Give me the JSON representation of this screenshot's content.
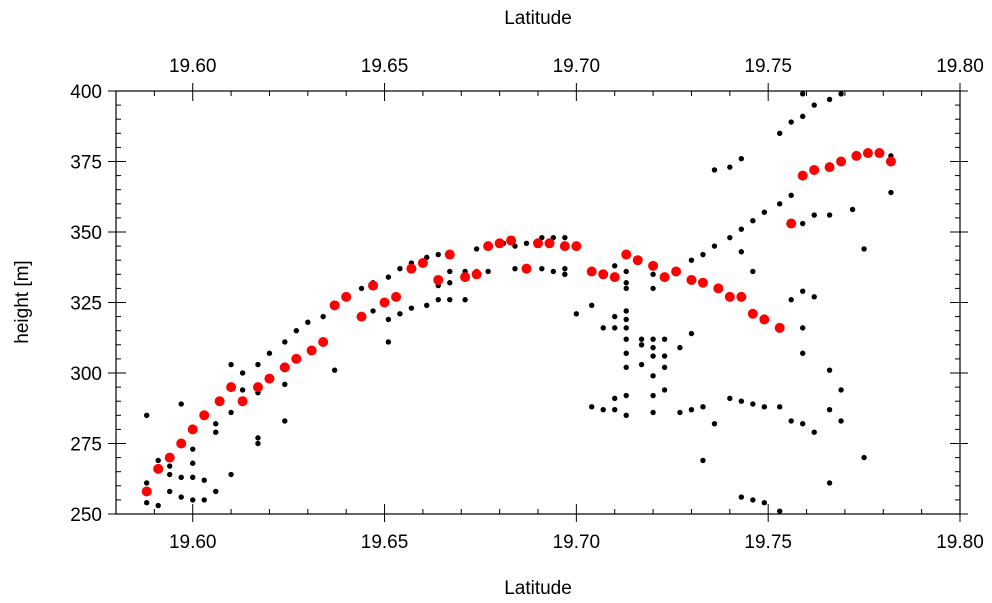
{
  "chart_data": {
    "type": "scatter",
    "title": "",
    "xlabel_top": "Latitude",
    "xlabel": "Latitude",
    "ylabel": "height [m]",
    "xlim": [
      19.58,
      19.8
    ],
    "ylim": [
      250,
      400
    ],
    "x_ticks": [
      19.6,
      19.65,
      19.7,
      19.75,
      19.8
    ],
    "x_tick_labels": [
      "19.60",
      "19.65",
      "19.70",
      "19.75",
      "19.80"
    ],
    "y_ticks": [
      250,
      275,
      300,
      325,
      350,
      375,
      400
    ],
    "y_tick_labels": [
      "250",
      "275",
      "300",
      "325",
      "350",
      "375",
      "400"
    ],
    "grid": false,
    "legend": "none",
    "series": [
      {
        "color": "#000000",
        "marker": "small-dot",
        "points": [
          [
            19.588,
            285
          ],
          [
            19.588,
            261
          ],
          [
            19.588,
            254
          ],
          [
            19.591,
            269
          ],
          [
            19.591,
            253
          ],
          [
            19.594,
            267
          ],
          [
            19.594,
            264
          ],
          [
            19.594,
            258
          ],
          [
            19.597,
            289
          ],
          [
            19.597,
            263
          ],
          [
            19.597,
            256
          ],
          [
            19.6,
            273
          ],
          [
            19.6,
            268
          ],
          [
            19.6,
            263
          ],
          [
            19.6,
            255
          ],
          [
            19.603,
            255
          ],
          [
            19.603,
            262
          ],
          [
            19.606,
            282
          ],
          [
            19.606,
            279
          ],
          [
            19.606,
            258
          ],
          [
            19.61,
            303
          ],
          [
            19.61,
            286
          ],
          [
            19.61,
            264
          ],
          [
            19.613,
            300
          ],
          [
            19.613,
            294
          ],
          [
            19.617,
            303
          ],
          [
            19.617,
            293
          ],
          [
            19.617,
            277
          ],
          [
            19.617,
            275
          ],
          [
            19.62,
            307
          ],
          [
            19.624,
            311
          ],
          [
            19.624,
            296
          ],
          [
            19.624,
            283
          ],
          [
            19.627,
            315
          ],
          [
            19.63,
            318
          ],
          [
            19.634,
            320
          ],
          [
            19.637,
            324
          ],
          [
            19.637,
            301
          ],
          [
            19.64,
            327
          ],
          [
            19.644,
            330
          ],
          [
            19.647,
            332
          ],
          [
            19.647,
            322
          ],
          [
            19.651,
            334
          ],
          [
            19.651,
            319
          ],
          [
            19.651,
            311
          ],
          [
            19.654,
            337
          ],
          [
            19.654,
            321
          ],
          [
            19.657,
            339
          ],
          [
            19.657,
            323
          ],
          [
            19.661,
            341
          ],
          [
            19.661,
            324
          ],
          [
            19.664,
            342
          ],
          [
            19.664,
            326
          ],
          [
            19.664,
            331
          ],
          [
            19.667,
            336
          ],
          [
            19.667,
            332
          ],
          [
            19.667,
            326
          ],
          [
            19.671,
            336
          ],
          [
            19.671,
            326
          ],
          [
            19.674,
            344
          ],
          [
            19.674,
            336
          ],
          [
            19.677,
            336
          ],
          [
            19.681,
            346
          ],
          [
            19.684,
            337
          ],
          [
            19.684,
            345
          ],
          [
            19.687,
            346
          ],
          [
            19.687,
            337
          ],
          [
            19.691,
            348
          ],
          [
            19.691,
            337
          ],
          [
            19.694,
            348
          ],
          [
            19.694,
            336
          ],
          [
            19.697,
            348
          ],
          [
            19.697,
            335
          ],
          [
            19.697,
            337
          ],
          [
            19.7,
            345
          ],
          [
            19.7,
            321
          ],
          [
            19.704,
            324
          ],
          [
            19.704,
            288
          ],
          [
            19.707,
            316
          ],
          [
            19.707,
            287
          ],
          [
            19.71,
            338
          ],
          [
            19.71,
            320
          ],
          [
            19.71,
            316
          ],
          [
            19.71,
            291
          ],
          [
            19.71,
            287
          ],
          [
            19.713,
            336
          ],
          [
            19.713,
            332
          ],
          [
            19.713,
            330
          ],
          [
            19.713,
            322
          ],
          [
            19.713,
            319
          ],
          [
            19.713,
            316
          ],
          [
            19.713,
            312
          ],
          [
            19.713,
            307
          ],
          [
            19.713,
            302
          ],
          [
            19.713,
            292
          ],
          [
            19.713,
            285
          ],
          [
            19.717,
            312
          ],
          [
            19.717,
            310
          ],
          [
            19.717,
            303
          ],
          [
            19.72,
            335
          ],
          [
            19.72,
            330
          ],
          [
            19.72,
            312
          ],
          [
            19.72,
            309
          ],
          [
            19.72,
            306
          ],
          [
            19.72,
            299
          ],
          [
            19.72,
            292
          ],
          [
            19.72,
            286
          ],
          [
            19.723,
            312
          ],
          [
            19.723,
            306
          ],
          [
            19.723,
            302
          ],
          [
            19.723,
            294
          ],
          [
            19.727,
            309
          ],
          [
            19.727,
            286
          ],
          [
            19.73,
            314
          ],
          [
            19.73,
            287
          ],
          [
            19.73,
            340
          ],
          [
            19.733,
            342
          ],
          [
            19.733,
            288
          ],
          [
            19.733,
            269
          ],
          [
            19.736,
            372
          ],
          [
            19.736,
            345
          ],
          [
            19.736,
            282
          ],
          [
            19.74,
            373
          ],
          [
            19.74,
            348
          ],
          [
            19.74,
            291
          ],
          [
            19.743,
            376
          ],
          [
            19.743,
            351
          ],
          [
            19.743,
            343
          ],
          [
            19.743,
            290
          ],
          [
            19.743,
            256
          ],
          [
            19.746,
            354
          ],
          [
            19.746,
            336
          ],
          [
            19.746,
            289
          ],
          [
            19.746,
            255
          ],
          [
            19.749,
            357
          ],
          [
            19.749,
            288
          ],
          [
            19.749,
            254
          ],
          [
            19.753,
            385
          ],
          [
            19.753,
            360
          ],
          [
            19.753,
            288
          ],
          [
            19.753,
            251
          ],
          [
            19.756,
            389
          ],
          [
            19.756,
            363
          ],
          [
            19.756,
            326
          ],
          [
            19.756,
            283
          ],
          [
            19.759,
            399
          ],
          [
            19.759,
            391
          ],
          [
            19.759,
            353
          ],
          [
            19.759,
            329
          ],
          [
            19.759,
            316
          ],
          [
            19.759,
            307
          ],
          [
            19.759,
            282
          ],
          [
            19.762,
            395
          ],
          [
            19.762,
            356
          ],
          [
            19.762,
            327
          ],
          [
            19.762,
            279
          ],
          [
            19.766,
            397
          ],
          [
            19.766,
            356
          ],
          [
            19.766,
            301
          ],
          [
            19.766,
            287
          ],
          [
            19.766,
            261
          ],
          [
            19.769,
            399
          ],
          [
            19.769,
            294
          ],
          [
            19.769,
            283
          ],
          [
            19.772,
            358
          ],
          [
            19.775,
            344
          ],
          [
            19.775,
            270
          ],
          [
            19.782,
            377
          ],
          [
            19.782,
            364
          ]
        ]
      },
      {
        "color": "#ff0000",
        "marker": "large-dot",
        "points": [
          [
            19.588,
            258
          ],
          [
            19.591,
            266
          ],
          [
            19.594,
            270
          ],
          [
            19.597,
            275
          ],
          [
            19.6,
            280
          ],
          [
            19.603,
            285
          ],
          [
            19.607,
            290
          ],
          [
            19.61,
            295
          ],
          [
            19.613,
            290
          ],
          [
            19.617,
            295
          ],
          [
            19.62,
            298
          ],
          [
            19.624,
            302
          ],
          [
            19.627,
            305
          ],
          [
            19.631,
            308
          ],
          [
            19.634,
            311
          ],
          [
            19.637,
            324
          ],
          [
            19.64,
            327
          ],
          [
            19.644,
            320
          ],
          [
            19.647,
            331
          ],
          [
            19.65,
            325
          ],
          [
            19.653,
            327
          ],
          [
            19.657,
            337
          ],
          [
            19.66,
            339
          ],
          [
            19.664,
            333
          ],
          [
            19.667,
            342
          ],
          [
            19.671,
            334
          ],
          [
            19.674,
            335
          ],
          [
            19.677,
            345
          ],
          [
            19.68,
            346
          ],
          [
            19.683,
            347
          ],
          [
            19.687,
            337
          ],
          [
            19.69,
            346
          ],
          [
            19.693,
            346
          ],
          [
            19.697,
            345
          ],
          [
            19.7,
            345
          ],
          [
            19.704,
            336
          ],
          [
            19.707,
            335
          ],
          [
            19.71,
            334
          ],
          [
            19.713,
            342
          ],
          [
            19.716,
            340
          ],
          [
            19.72,
            338
          ],
          [
            19.723,
            334
          ],
          [
            19.726,
            336
          ],
          [
            19.73,
            333
          ],
          [
            19.733,
            332
          ],
          [
            19.737,
            330
          ],
          [
            19.74,
            327
          ],
          [
            19.743,
            327
          ],
          [
            19.746,
            321
          ],
          [
            19.749,
            319
          ],
          [
            19.753,
            316
          ],
          [
            19.756,
            353
          ],
          [
            19.759,
            370
          ],
          [
            19.762,
            372
          ],
          [
            19.766,
            373
          ],
          [
            19.769,
            375
          ],
          [
            19.773,
            377
          ],
          [
            19.776,
            378
          ],
          [
            19.779,
            378
          ],
          [
            19.782,
            375
          ]
        ]
      }
    ]
  }
}
